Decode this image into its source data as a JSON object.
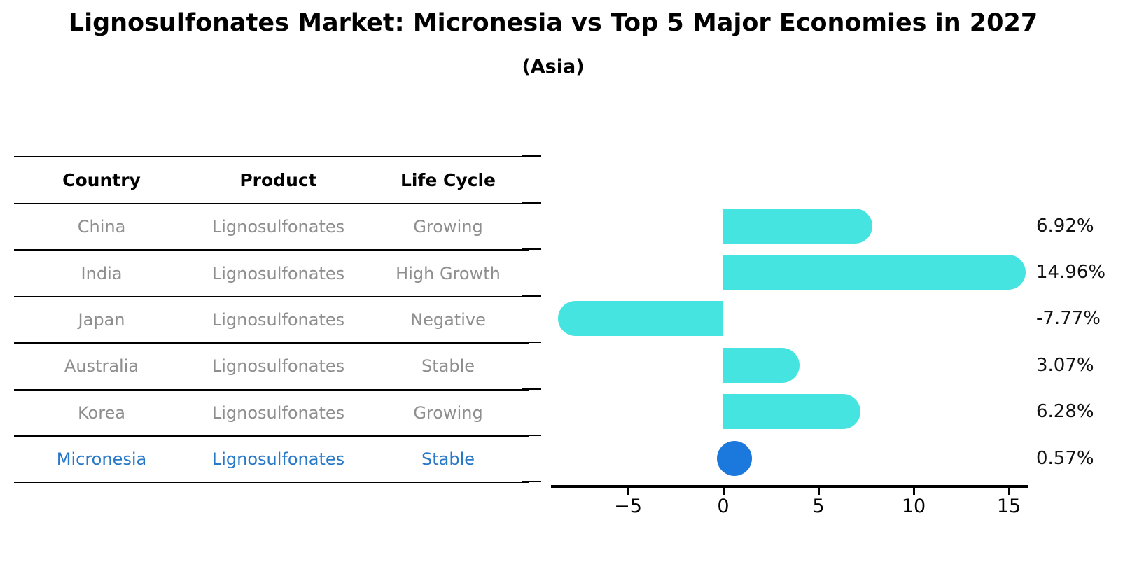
{
  "header": {
    "title": "Lignosulfonates Market: Micronesia vs Top 5 Major Economies in 2027",
    "subtitle": "(Asia)"
  },
  "table": {
    "headers": [
      "Country",
      "Product",
      "Life Cycle"
    ],
    "rows": [
      {
        "country": "China",
        "product": "Lignosulfonates",
        "life_cycle": "Growing",
        "highlight": false
      },
      {
        "country": "India",
        "product": "Lignosulfonates",
        "life_cycle": "High Growth",
        "highlight": false
      },
      {
        "country": "Japan",
        "product": "Lignosulfonates",
        "life_cycle": "Negative",
        "highlight": false
      },
      {
        "country": "Australia",
        "product": "Lignosulfonates",
        "life_cycle": "Stable",
        "highlight": false
      },
      {
        "country": "Korea",
        "product": "Lignosulfonates",
        "life_cycle": "Growing",
        "highlight": false
      },
      {
        "country": "Micronesia",
        "product": "Lignosulfonates",
        "life_cycle": "Stable",
        "highlight": true
      }
    ]
  },
  "colors": {
    "bar": "#45E4E0",
    "highlight_bar": "#1B78DC",
    "table_gray": "#8e8e8e",
    "highlight_text": "#2878C8"
  },
  "chart_data": {
    "type": "bar",
    "orientation": "horizontal",
    "title": "Lignosulfonates Market: Micronesia vs Top 5 Major Economies in 2027",
    "subtitle": "(Asia)",
    "categories": [
      "China",
      "India",
      "Japan",
      "Australia",
      "Korea",
      "Micronesia"
    ],
    "values": [
      6.92,
      14.96,
      -7.77,
      3.07,
      6.28,
      0.57
    ],
    "value_labels": [
      "6.92%",
      "14.96%",
      "-7.77%",
      "3.07%",
      "6.28%",
      "0.57%"
    ],
    "highlight_index": 5,
    "xlim": [
      -9,
      16
    ],
    "xticks": {
      "values": [
        -5,
        0,
        5,
        10,
        15
      ],
      "labels": [
        "−5",
        "0",
        "5",
        "10",
        "15"
      ]
    },
    "grid": false,
    "legend": "none"
  }
}
